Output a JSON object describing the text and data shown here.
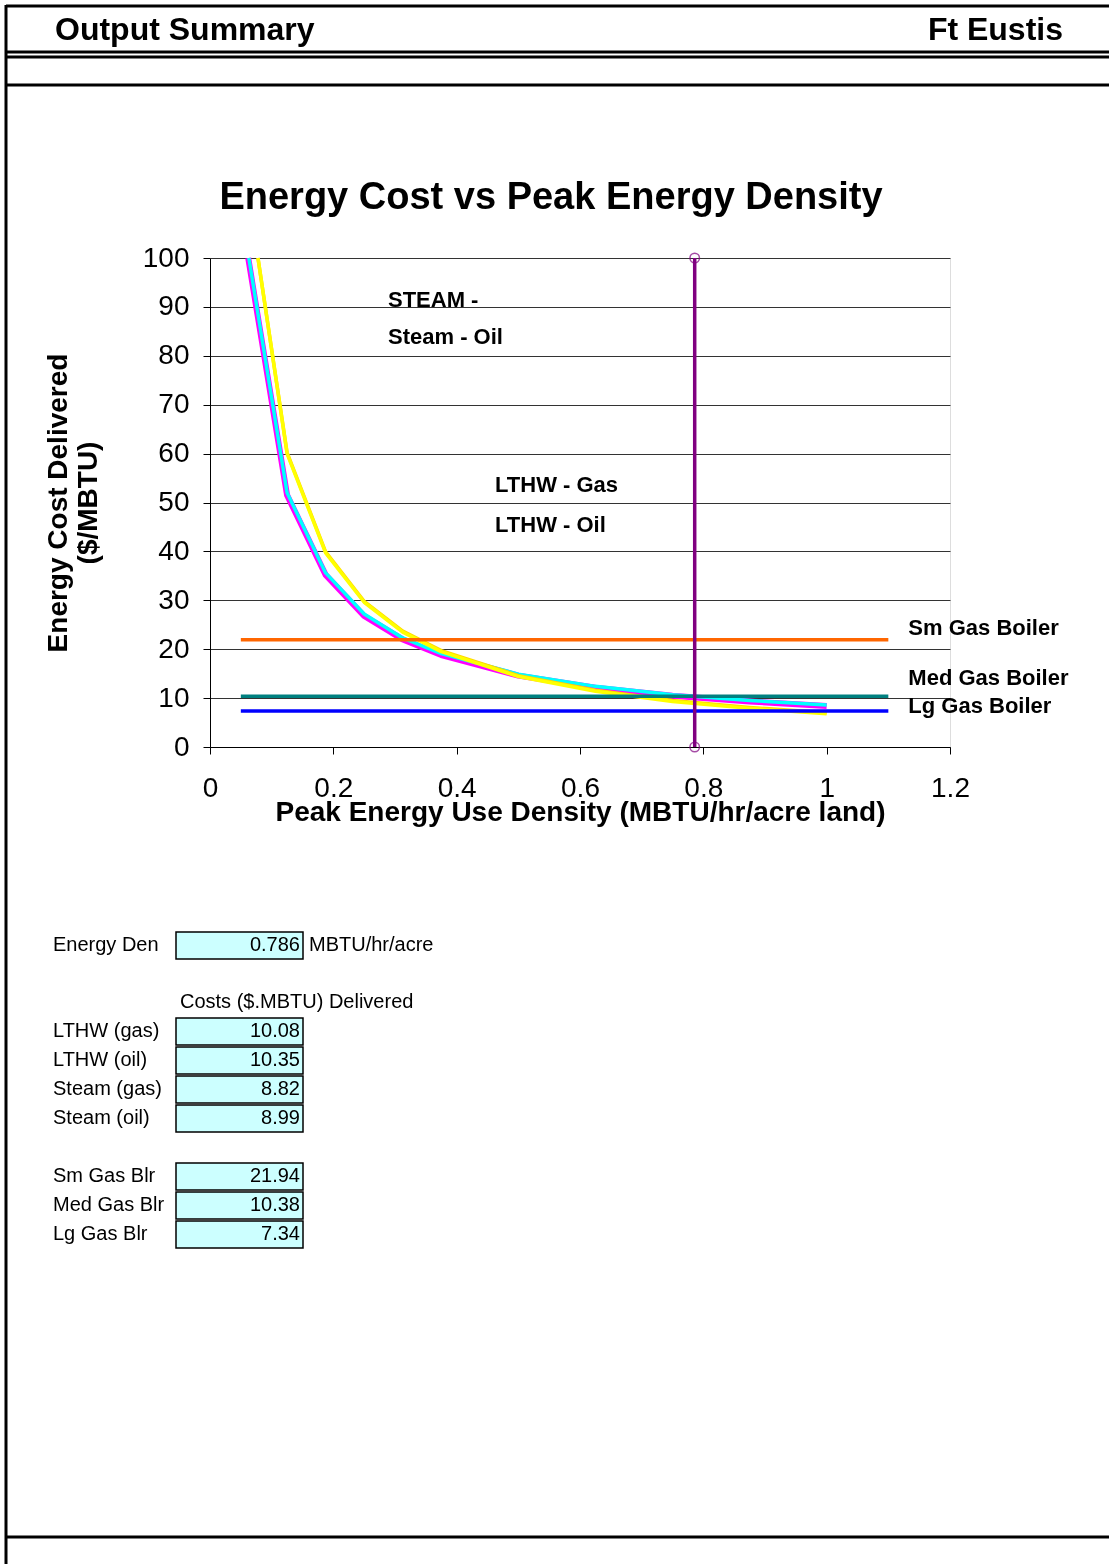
{
  "chart_data": {
    "type": "line",
    "title": "Energy Cost vs Peak Energy Density",
    "xlabel": "Peak Energy Use Density (MBTU/hr/acre land)",
    "ylabel": "Energy Cost Delivered\n($/MBTU)",
    "xlim": [
      0,
      1.2
    ],
    "xticks": [
      0,
      0.2,
      0.4,
      0.6,
      0.8,
      1,
      1.2
    ],
    "ylim": [
      0,
      100
    ],
    "yticks": [
      0,
      10,
      20,
      30,
      40,
      50,
      60,
      70,
      80,
      90,
      100
    ],
    "grid": "y",
    "legend": false,
    "line_style": "solid",
    "series": [
      {
        "color": "#ff00ff",
        "marker": "none",
        "x": [
          0.062,
          0.125,
          0.1875,
          0.25,
          0.3125,
          0.375,
          0.5,
          0.625,
          0.75,
          0.875,
          1
        ],
        "values": [
          100,
          51.5,
          35.2,
          26.8,
          22,
          18.8,
          14.6,
          12.1,
          10.5,
          9.3,
          8.4
        ]
      },
      {
        "color": "#00ffff",
        "marker": "none",
        "x": [
          0.063,
          0.125,
          0.1875,
          0.25,
          0.3125,
          0.375,
          0.5,
          0.625,
          0.75,
          0.875,
          1
        ],
        "values": [
          100,
          52,
          35.6,
          27.2,
          22.3,
          19.1,
          14.9,
          12.4,
          10.7,
          9.5,
          8.6
        ]
      },
      {
        "color": "#ffd700",
        "marker": "none",
        "x": [
          0.0778,
          0.125,
          0.1875,
          0.25,
          0.3125,
          0.375,
          0.5,
          0.625,
          0.75,
          0.875,
          1
        ],
        "values": [
          100,
          60.2,
          39.9,
          29.8,
          23.7,
          19.7,
          14.6,
          11.6,
          9.5,
          8.1,
          7
        ]
      },
      {
        "color": "#ffff00",
        "marker": "none",
        "x": [
          0.0778,
          0.125,
          0.1875,
          0.25,
          0.3125,
          0.375,
          0.5,
          0.625,
          0.75,
          0.875,
          1
        ],
        "values": [
          100,
          60,
          39.7,
          29.6,
          23.5,
          19.5,
          14.4,
          11.4,
          9.3,
          7.9,
          6.8
        ]
      },
      {
        "name": "Sm Gas Boiler",
        "color": "#ff6600",
        "marker": "none",
        "x": [
          0.05,
          1.1
        ],
        "values": [
          21.94,
          21.94
        ]
      },
      {
        "name": "Med Gas Boiler",
        "color": "#008080",
        "marker": "none",
        "x": [
          0.05,
          1.1
        ],
        "values": [
          10.38,
          10.38
        ]
      },
      {
        "name": "Lg Gas Boiler",
        "color": "#0000ff",
        "marker": "none",
        "x": [
          0.05,
          1.1
        ],
        "values": [
          7.34,
          7.34
        ]
      },
      {
        "color": "#800080",
        "marker": "circle",
        "x": [
          0.786,
          0.786
        ],
        "values": [
          0,
          100
        ]
      }
    ],
    "annotations": [
      "Output Summary",
      "Ft Eustis",
      "STEAM -",
      "Steam - Oil",
      "LTHW - Gas",
      "LTHW - Oil",
      "Energy Den",
      "0.786",
      "MBTU/hr/acre",
      "Costs ($.MBTU) Delivered",
      "LTHW (gas)",
      "10.08",
      "LTHW (oil)",
      "10.35",
      "Steam (gas)",
      "8.82",
      "Steam (oil)",
      "8.99",
      "Sm Gas Blr",
      "21.94",
      "Med Gas Blr",
      "10.38",
      "Lg Gas Blr",
      "7.34"
    ]
  }
}
